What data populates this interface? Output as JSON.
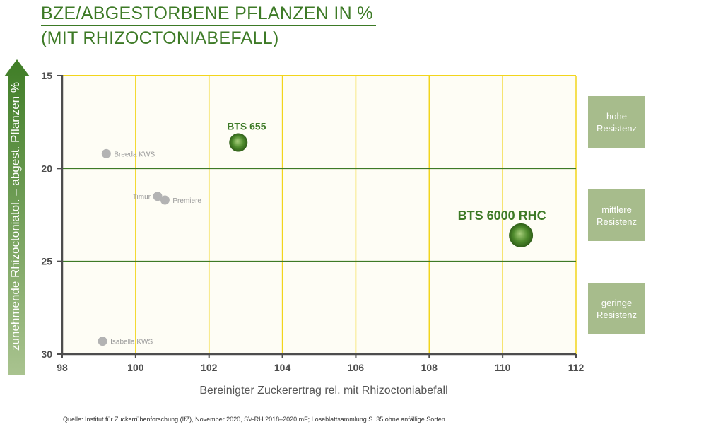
{
  "title": {
    "line1": "BZE/ABGESTORBENE PFLANZEN IN %",
    "line2": "(MIT RHIZOCTONIABEFALL)"
  },
  "resistance_boxes": [
    "hohe Resistenz",
    "mittlere Resistenz",
    "geringe Resistenz"
  ],
  "source": "Quelle: Institut für Zuckerrübenforschung (IfZ), November 2020, SV-RH 2018–2020 mF; Loseblattsammlung S. 35 ohne anfällige Sorten",
  "colors": {
    "accent_green": "#3d7a26",
    "highlight_point": "#4e8a2c",
    "other_point": "#b3b3b3",
    "grid_yellow": "#f2d51c",
    "plot_bg": "#fefdf5",
    "resistance_box": "#a7bc8c"
  },
  "chart_data": {
    "type": "scatter",
    "xlabel": "Bereinigter Zuckerertrag rel. mit Rhizoctoniabefall",
    "ylabel": "zunehmende Rhizoctoniatol. – abgest. Pflanzen %",
    "xlim": [
      98,
      112
    ],
    "ylim": [
      15,
      30
    ],
    "y_inverted": true,
    "xticks": [
      98,
      100,
      102,
      104,
      106,
      108,
      110,
      112
    ],
    "yticks": [
      15,
      20,
      25,
      30
    ],
    "grid": true,
    "points": [
      {
        "label": "BTS 655",
        "x": 102.8,
        "y": 18.6,
        "highlight": true,
        "size": "medium"
      },
      {
        "label": "BTS 6000 RHC",
        "x": 110.5,
        "y": 23.6,
        "highlight": true,
        "size": "large"
      },
      {
        "label": "Breeda KWS",
        "x": 99.2,
        "y": 19.2,
        "highlight": false
      },
      {
        "label": "Timur",
        "x": 100.6,
        "y": 21.5,
        "highlight": false
      },
      {
        "label": "Premiere",
        "x": 100.8,
        "y": 21.7,
        "highlight": false
      },
      {
        "label": "Isabella KWS",
        "x": 99.1,
        "y": 29.3,
        "highlight": false
      }
    ]
  }
}
